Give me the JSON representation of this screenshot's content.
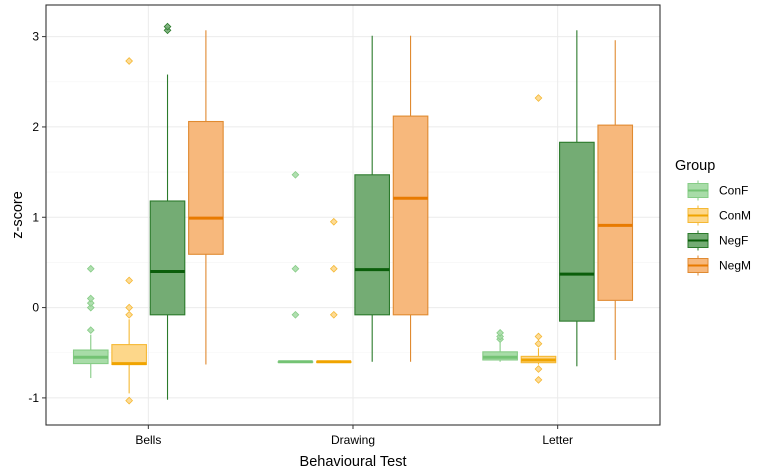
{
  "chart_data": {
    "type": "boxplot",
    "xlabel": "Behavioural Test",
    "ylabel": "z-score",
    "categories": [
      "Bells",
      "Drawing",
      "Letter"
    ],
    "y_ticks": [
      -1,
      0,
      1,
      2,
      3
    ],
    "y_tick_labels": [
      "-1",
      "0",
      "1",
      "2",
      "3"
    ],
    "ylim": [
      -1.3,
      3.35
    ],
    "grid": true,
    "legend": {
      "title": "Group",
      "placement": "right",
      "entries": [
        "ConF",
        "ConM",
        "NegF",
        "NegM"
      ]
    },
    "series": [
      {
        "name": "ConF",
        "fill": "#a8dca8",
        "stroke": "#86cc86",
        "median_color": "#74c374",
        "boxes": [
          {
            "category": "Bells",
            "whisker_low": -0.78,
            "q1": -0.62,
            "median": -0.55,
            "q3": -0.47,
            "whisker_high": -0.3,
            "outliers": [
              -0.25,
              0.0,
              0.05,
              0.1,
              0.43
            ]
          },
          {
            "category": "Drawing",
            "whisker_low": -0.6,
            "q1": -0.6,
            "median": -0.6,
            "q3": -0.6,
            "whisker_high": -0.6,
            "outliers": [
              -0.08,
              0.43,
              1.47
            ]
          },
          {
            "category": "Letter",
            "whisker_low": -0.6,
            "q1": -0.58,
            "median": -0.55,
            "q3": -0.49,
            "whisker_high": -0.38,
            "outliers": [
              -0.35,
              -0.32,
              -0.28
            ]
          }
        ]
      },
      {
        "name": "ConM",
        "fill": "#fdd78a",
        "stroke": "#f5b833",
        "median_color": "#f0a400",
        "boxes": [
          {
            "category": "Bells",
            "whisker_low": -0.95,
            "q1": -0.63,
            "median": -0.62,
            "q3": -0.41,
            "whisker_high": -0.13,
            "outliers": [
              -1.03,
              -0.08,
              0.0,
              0.3,
              2.73
            ]
          },
          {
            "category": "Drawing",
            "whisker_low": -0.6,
            "q1": -0.6,
            "median": -0.6,
            "q3": -0.6,
            "whisker_high": -0.6,
            "outliers": [
              -0.08,
              0.43,
              0.95
            ]
          },
          {
            "category": "Letter",
            "whisker_low": -0.63,
            "q1": -0.61,
            "median": -0.58,
            "q3": -0.54,
            "whisker_high": -0.45,
            "outliers": [
              -0.8,
              -0.68,
              -0.4,
              -0.32,
              2.32
            ]
          }
        ]
      },
      {
        "name": "NegF",
        "fill": "#74ac74",
        "stroke": "#2b7a2b",
        "median_color": "#0a5e0a",
        "boxes": [
          {
            "category": "Bells",
            "whisker_low": -1.02,
            "q1": -0.08,
            "median": 0.4,
            "q3": 1.18,
            "whisker_high": 2.58,
            "outliers": [
              3.07,
              3.11
            ]
          },
          {
            "category": "Drawing",
            "whisker_low": -0.6,
            "q1": -0.08,
            "median": 0.42,
            "q3": 1.47,
            "whisker_high": 3.01,
            "outliers": []
          },
          {
            "category": "Letter",
            "whisker_low": -0.65,
            "q1": -0.15,
            "median": 0.37,
            "q3": 1.83,
            "whisker_high": 3.07,
            "outliers": []
          }
        ]
      },
      {
        "name": "NegM",
        "fill": "#f7b87c",
        "stroke": "#e08a30",
        "median_color": "#e87a00",
        "boxes": [
          {
            "category": "Bells",
            "whisker_low": -0.63,
            "q1": 0.59,
            "median": 0.99,
            "q3": 2.06,
            "whisker_high": 3.07,
            "outliers": []
          },
          {
            "category": "Drawing",
            "whisker_low": -0.6,
            "q1": -0.08,
            "median": 1.21,
            "q3": 2.12,
            "whisker_high": 3.01,
            "outliers": []
          },
          {
            "category": "Letter",
            "whisker_low": -0.58,
            "q1": 0.08,
            "median": 0.91,
            "q3": 2.02,
            "whisker_high": 2.96,
            "outliers": []
          }
        ]
      }
    ],
    "colors": {
      "panel_border": "#333333",
      "grid_major": "#ebebeb",
      "grid_minor": "#f5f5f5"
    }
  }
}
